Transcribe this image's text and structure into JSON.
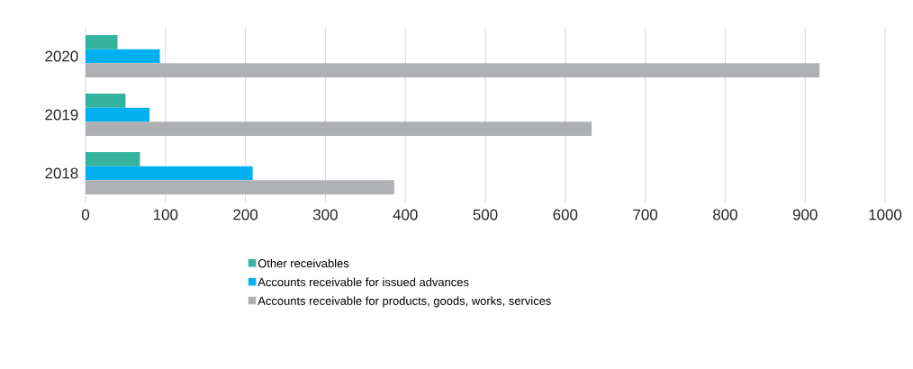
{
  "chart_data": {
    "type": "bar",
    "orientation": "horizontal",
    "categories": [
      "2020",
      "2019",
      "2018"
    ],
    "series": [
      {
        "name": "Other receivables",
        "color": "#34b39e",
        "values": [
          40,
          50,
          68
        ]
      },
      {
        "name": "Accounts receivable for issued advances",
        "color": "#00b0f0",
        "values": [
          93,
          80,
          209
        ]
      },
      {
        "name": "Accounts receivable for products, goods, works, services",
        "color": "#afb0b3",
        "values": [
          918,
          633,
          386
        ]
      }
    ],
    "xlim": [
      0,
      1000
    ],
    "xticks": [
      0,
      100,
      200,
      300,
      400,
      500,
      600,
      700,
      800,
      900,
      1000
    ],
    "grid": "x",
    "legend": "bottom"
  }
}
